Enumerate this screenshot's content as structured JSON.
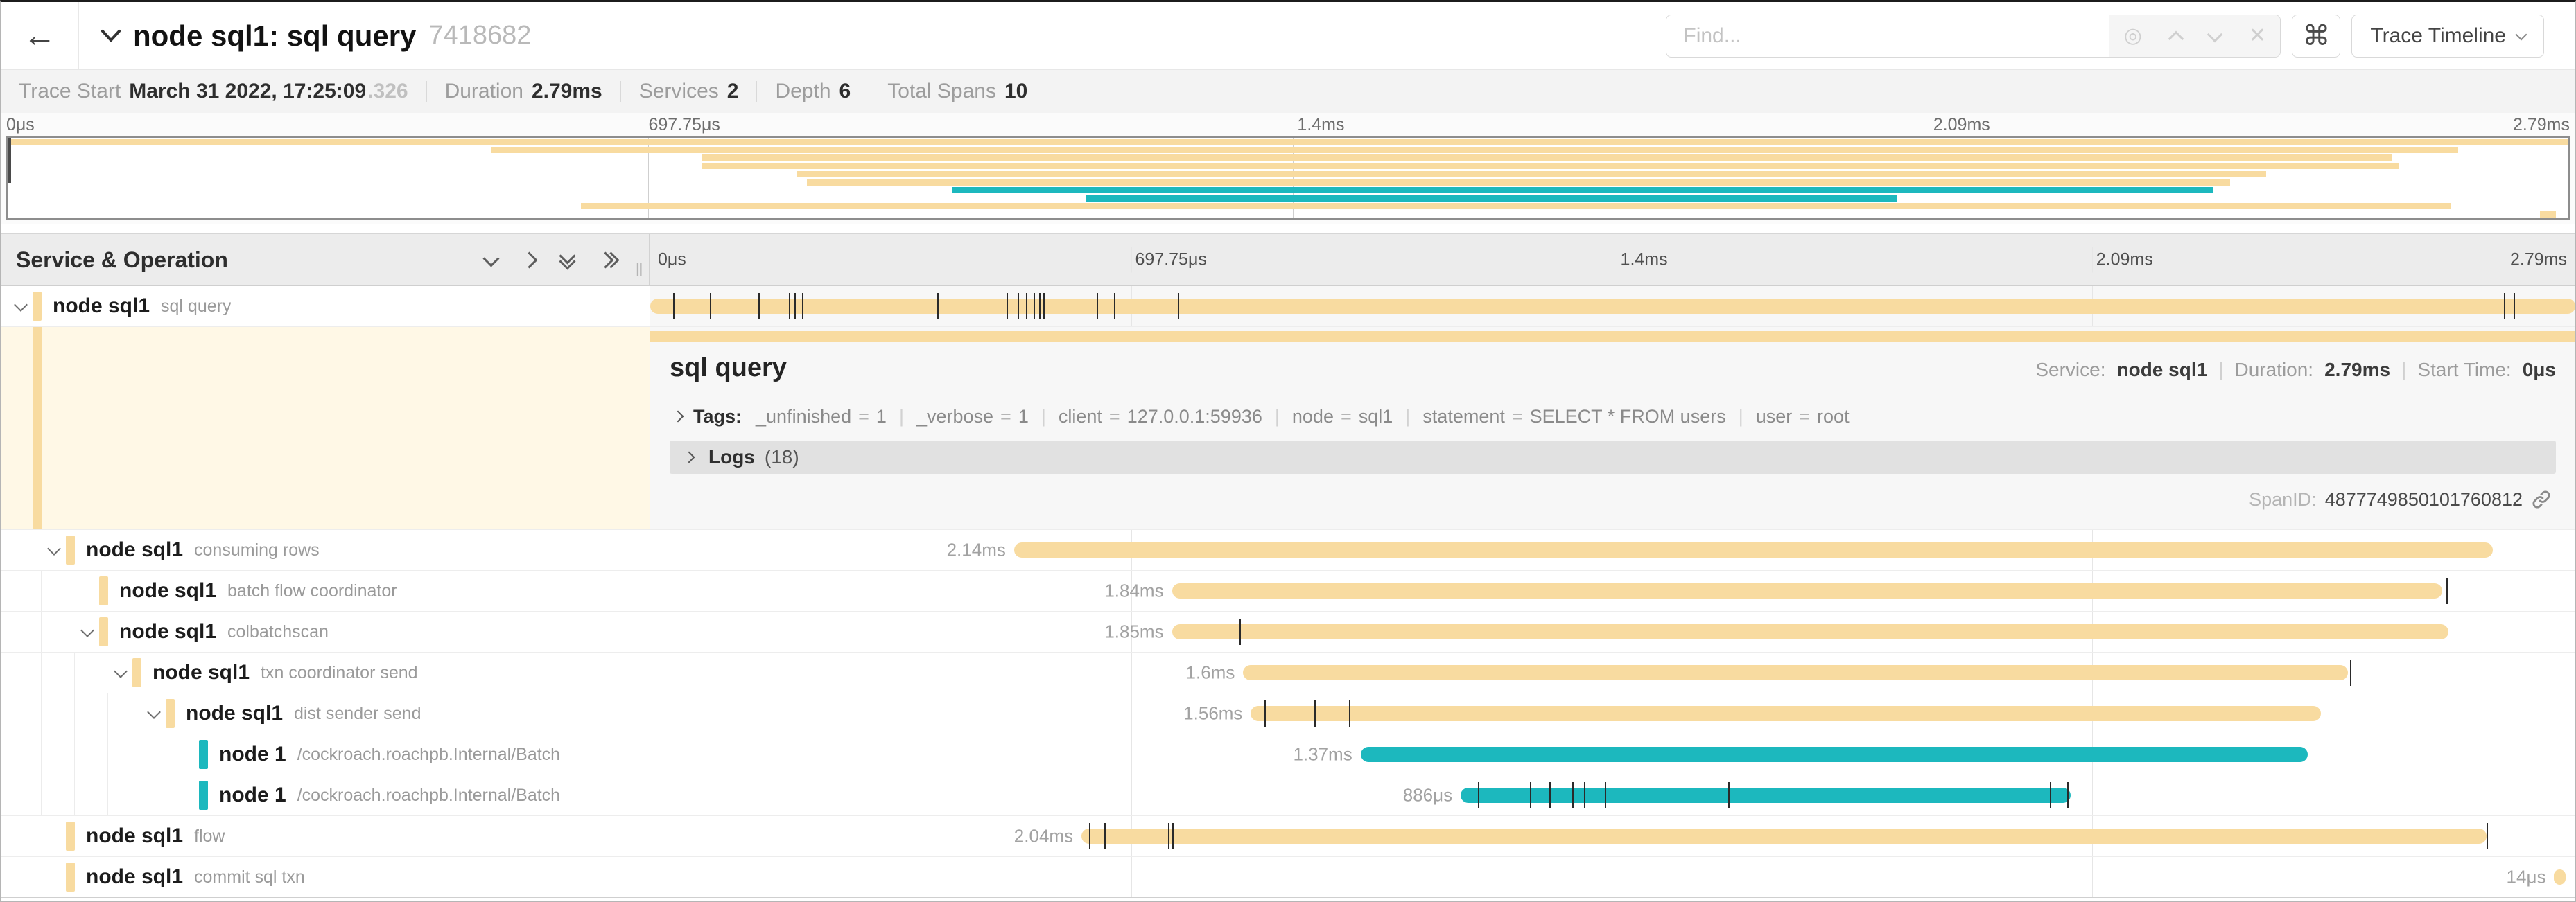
{
  "header": {
    "title": "node sql1: sql query",
    "trace_id": "7418682",
    "find_placeholder": "Find...",
    "clear_icon": "✕",
    "locate_icon": "◎",
    "shortcut_icon": "⌘",
    "back_icon": "←",
    "view_label": "Trace Timeline"
  },
  "summary": {
    "items": [
      {
        "label": "Trace Start",
        "value": "March 31 2022, 17:25:09",
        "suffix": ".326"
      },
      {
        "label": "Duration",
        "value": "2.79ms"
      },
      {
        "label": "Services",
        "value": "2"
      },
      {
        "label": "Depth",
        "value": "6"
      },
      {
        "label": "Total Spans",
        "value": "10"
      }
    ]
  },
  "ruler": {
    "ticks": [
      {
        "text": "0μs",
        "pos": 0
      },
      {
        "text": "697.75μs",
        "pos": 25
      },
      {
        "text": "1.4ms",
        "pos": 50.2
      },
      {
        "text": "2.09ms",
        "pos": 74.9
      },
      {
        "text": "2.79ms",
        "pos": 100
      }
    ],
    "gridlines": [
      25,
      50.2,
      74.9
    ]
  },
  "table": {
    "header_title": "Service & Operation"
  },
  "colors": {
    "tan": "#F8DBA0",
    "teal": "#1CB8BE"
  },
  "spans": [
    {
      "service": "node sql1",
      "operation": "sql query",
      "depth": 0,
      "color": "tan",
      "has_children": true,
      "selected": true,
      "duration_label": "",
      "start": 0,
      "end": 100,
      "ticks": [
        1.2,
        3.1,
        5.6,
        7.2,
        7.5,
        7.9,
        14.9,
        18.5,
        19.1,
        19.5,
        19.9,
        20.2,
        20.4,
        23.2,
        24.1,
        27.4,
        96.3,
        96.8
      ]
    },
    {
      "service": "node sql1",
      "operation": "consuming rows",
      "depth": 1,
      "color": "tan",
      "has_children": true,
      "selected": false,
      "duration_label": "2.14ms",
      "start": 18.9,
      "end": 95.7,
      "ticks": []
    },
    {
      "service": "node sql1",
      "operation": "batch flow coordinator",
      "depth": 2,
      "color": "tan",
      "has_children": false,
      "selected": false,
      "duration_label": "1.84ms",
      "start": 27.1,
      "end": 93.1,
      "ticks": [
        93.3
      ]
    },
    {
      "service": "node sql1",
      "operation": "colbatchscan",
      "depth": 2,
      "color": "tan",
      "has_children": true,
      "selected": false,
      "duration_label": "1.85ms",
      "start": 27.1,
      "end": 93.4,
      "ticks": [
        30.6
      ]
    },
    {
      "service": "node sql1",
      "operation": "txn coordinator send",
      "depth": 3,
      "color": "tan",
      "has_children": true,
      "selected": false,
      "duration_label": "1.6ms",
      "start": 30.8,
      "end": 88.2,
      "ticks": [
        88.3
      ]
    },
    {
      "service": "node sql1",
      "operation": "dist sender send",
      "depth": 4,
      "color": "tan",
      "has_children": true,
      "selected": false,
      "duration_label": "1.56ms",
      "start": 31.2,
      "end": 86.8,
      "ticks": [
        31.9,
        34.5,
        36.3
      ]
    },
    {
      "service": "node 1",
      "operation": "/cockroach.roachpb.Internal/Batch",
      "depth": 5,
      "color": "teal",
      "has_children": false,
      "selected": false,
      "duration_label": "1.37ms",
      "start": 36.9,
      "end": 86.1,
      "ticks": []
    },
    {
      "service": "node 1",
      "operation": "/cockroach.roachpb.Internal/Batch",
      "depth": 5,
      "color": "teal",
      "has_children": false,
      "selected": false,
      "duration_label": "886μs",
      "start": 42.1,
      "end": 73.8,
      "ticks": [
        43.0,
        45.7,
        46.7,
        47.9,
        48.5,
        49.6,
        56.0,
        72.7,
        73.6
      ]
    },
    {
      "service": "node sql1",
      "operation": "flow",
      "depth": 1,
      "color": "tan",
      "has_children": false,
      "selected": false,
      "duration_label": "2.04ms",
      "start": 22.4,
      "end": 95.4,
      "ticks": [
        22.8,
        23.6,
        26.9,
        27.1,
        95.4
      ]
    },
    {
      "service": "node sql1",
      "operation": "commit sql txn",
      "depth": 1,
      "color": "tan",
      "has_children": false,
      "selected": false,
      "duration_label": "14μs",
      "start": 98.9,
      "end": 99.5,
      "ticks": []
    }
  ],
  "detail": {
    "title": "sql query",
    "service_label": "Service:",
    "service_value": "node sql1",
    "duration_label": "Duration:",
    "duration_value": "2.79ms",
    "start_label": "Start Time:",
    "start_value": "0μs",
    "tags_label": "Tags:",
    "tags": [
      {
        "key": "_unfinished",
        "value": "1"
      },
      {
        "key": "_verbose",
        "value": "1"
      },
      {
        "key": "client",
        "value": "127.0.0.1:59936"
      },
      {
        "key": "node",
        "value": "sql1"
      },
      {
        "key": "statement",
        "value": "SELECT * FROM users"
      },
      {
        "key": "user",
        "value": "root"
      }
    ],
    "logs_label": "Logs",
    "logs_count": "(18)",
    "span_id_label": "SpanID:",
    "span_id": "4877749850101760812"
  }
}
